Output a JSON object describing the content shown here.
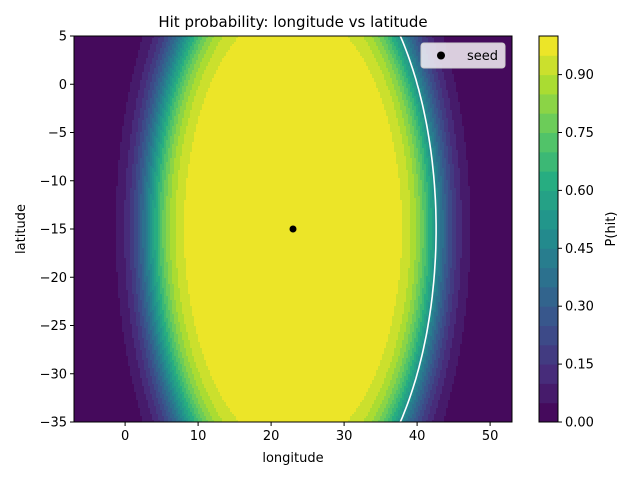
{
  "chart_data": {
    "type": "contour",
    "title": "Hit probability: longitude vs latitude",
    "xlabel": "longitude",
    "ylabel": "latitude",
    "xlim": [
      -7,
      53
    ],
    "ylim": [
      -35,
      5
    ],
    "x_ticks": [
      "0",
      "10",
      "20",
      "30",
      "40",
      "50"
    ],
    "y_ticks": [
      "5",
      "0",
      "−5",
      "−10",
      "−15",
      "−20",
      "−25",
      "−30",
      "−35"
    ],
    "colorbar": {
      "label": "P(hit)",
      "range": [
        0,
        1
      ],
      "ticks": [
        "0.00",
        "0.15",
        "0.30",
        "0.45",
        "0.60",
        "0.75",
        "0.90"
      ],
      "levels": 20,
      "colormap": "viridis"
    },
    "contour_line": {
      "level": 0.5,
      "color": "#ffffff"
    },
    "seed": {
      "name": "seed",
      "x": 23,
      "y": -15,
      "color": "#000000"
    },
    "legend": {
      "position": "top-right",
      "entries": [
        "seed"
      ]
    },
    "grid": false
  }
}
